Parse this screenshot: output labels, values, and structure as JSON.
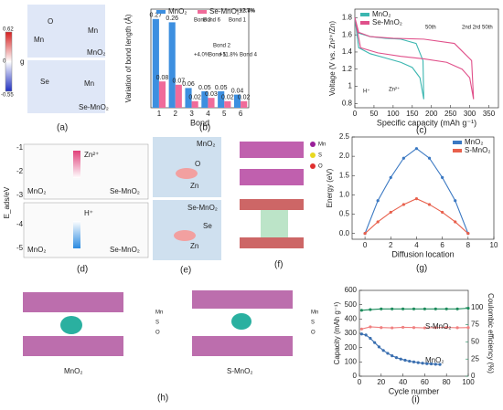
{
  "panel_labels": [
    "(a)",
    "(b)",
    "(c)",
    "(d)",
    "(e)",
    "(f)",
    "(g)",
    "(h)",
    "(i)"
  ],
  "panel_a": {
    "colorbar_title": "g",
    "colorbar_ticks": [
      0.62,
      0,
      -0.55
    ],
    "top_labels": [
      "O",
      "Mn",
      "Mn",
      "MnO₂"
    ],
    "bottom_labels": [
      "Se",
      "Mn",
      "Se-MnO₂"
    ]
  },
  "panel_d": {
    "axis_label": "E_ads/eV",
    "ticks": [
      -1,
      -2,
      -3,
      -4,
      -5
    ],
    "ions": [
      "Zn²⁺",
      "H⁺"
    ],
    "structures": [
      "MnO₂",
      "Se-MnO₂",
      "MnO₂",
      "Se-MnO₂"
    ]
  },
  "panel_e": {
    "top_labels": [
      "MnO₂",
      "O",
      "Zn"
    ],
    "bottom_labels": [
      "Se-MnO₂",
      "Se",
      "Zn"
    ]
  },
  "panel_f": {
    "legend": [
      "Mn",
      "S",
      "O"
    ]
  },
  "panel_h": {
    "structures": [
      "MnO₂",
      "S-MnO₂"
    ],
    "legend_left": [
      "Mn",
      "S",
      "O"
    ],
    "legend_right": [
      "Mn",
      "S",
      "O"
    ]
  },
  "chart_data": [
    {
      "type": "bar",
      "xlabel": "Bond",
      "ylabel": "Variation of bond length (Å)",
      "categories": [
        "1",
        "2",
        "3",
        "4",
        "5",
        "6"
      ],
      "ylim": [
        0,
        0.3
      ],
      "legend": "upper center",
      "series": [
        {
          "name": "MnO₂",
          "color": "#3d8fe0",
          "values": [
            0.27,
            0.26,
            0.06,
            0.05,
            0.05,
            0.04
          ]
        },
        {
          "name": "Se-MnO₂",
          "color": "#f06b9a",
          "values": [
            0.08,
            0.07,
            0.02,
            0.03,
            0.02,
            0.02
          ]
        }
      ],
      "annotations": [
        "Bond 3",
        "Bond 1",
        "+12.7%",
        "Bond 2",
        "+11.8%",
        "+4.0%",
        "Bond 6",
        "Bond 5",
        "Bond 4",
        "+3.4%"
      ]
    },
    {
      "type": "line",
      "xlabel": "Specific capacity (mAh g⁻¹)",
      "ylabel": "Voltage (V vs. Zn²⁺/Zn)",
      "xlim": [
        0,
        375
      ],
      "ylim": [
        0.75,
        1.9
      ],
      "xticks": [
        0,
        50,
        100,
        150,
        200,
        250,
        300,
        350
      ],
      "yticks": [
        0.8,
        1,
        1.2,
        1.4,
        1.6,
        1.8
      ],
      "legend": "upper left",
      "series": [
        {
          "name": "MnO₂",
          "color": "#3bb6b0",
          "x": [
            0,
            10,
            40,
            80,
            120,
            150,
            170,
            180,
            178,
            160,
            120,
            80,
            40,
            10,
            0
          ],
          "values": [
            1.8,
            1.45,
            1.38,
            1.33,
            1.28,
            1.22,
            1.1,
            0.85,
            1.3,
            1.5,
            1.55,
            1.56,
            1.58,
            1.62,
            1.8
          ]
        },
        {
          "name": "Se-MnO₂",
          "color": "#e0508a",
          "x": [
            0,
            15,
            60,
            120,
            180,
            240,
            280,
            300,
            310,
            305,
            260,
            180,
            100,
            40,
            10,
            0
          ],
          "values": [
            1.8,
            1.45,
            1.39,
            1.35,
            1.32,
            1.28,
            1.2,
            1.1,
            0.85,
            1.3,
            1.5,
            1.55,
            1.56,
            1.58,
            1.63,
            1.8
          ]
        }
      ],
      "annotations": [
        "50th",
        "2nd 2rd 50th",
        "H⁺",
        "Zn²⁺"
      ]
    },
    {
      "type": "line",
      "xlabel": "Diffusion location",
      "ylabel": "Energy (eV)",
      "markers": true,
      "xlim": [
        -1,
        10
      ],
      "ylim": [
        -0.15,
        2.5
      ],
      "xticks": [
        0,
        2,
        4,
        6,
        8,
        10
      ],
      "yticks": [
        {
          "value": 0,
          "label": "0.0"
        },
        0.5,
        {
          "value": 1,
          "label": "1.0"
        },
        1.5,
        {
          "value": 2,
          "label": "2.0"
        },
        2.5
      ],
      "legend": "upper right",
      "x": [
        0,
        1,
        2,
        3,
        4,
        5,
        6,
        7,
        8
      ],
      "series": [
        {
          "name": "MnO₂",
          "color": "#3a78c2",
          "values": [
            0,
            0.85,
            1.45,
            1.95,
            2.2,
            1.95,
            1.45,
            0.85,
            0
          ]
        },
        {
          "name": "S-MnO₂",
          "color": "#e8604c",
          "values": [
            0,
            0.3,
            0.55,
            0.75,
            0.9,
            0.75,
            0.55,
            0.3,
            0
          ]
        }
      ]
    },
    {
      "type": "line",
      "xlabel": "Cycle number",
      "ylabel": "Capacity (mAh g⁻¹)",
      "y2label": "Coulombic efficiency (%)",
      "markers": true,
      "xlim": [
        0,
        100
      ],
      "ylim": [
        0,
        600
      ],
      "y2lim": [
        0,
        125
      ],
      "xticks": [
        0,
        20,
        40,
        60,
        80,
        100
      ],
      "yticks": [
        0,
        100,
        200,
        300,
        400,
        500,
        600
      ],
      "y2ticks": [
        0,
        25,
        50,
        75,
        100
      ],
      "series": [
        {
          "name": "MnO₂",
          "color": "#3a6fb0",
          "x": [
            2,
            6,
            10,
            14,
            18,
            22,
            26,
            30,
            34,
            38,
            42,
            46,
            50,
            54,
            58,
            62,
            66,
            70,
            74
          ],
          "values": [
            295,
            288,
            265,
            235,
            205,
            180,
            160,
            143,
            130,
            120,
            112,
            105,
            100,
            95,
            91,
            88,
            86,
            84,
            82
          ]
        },
        {
          "name": "S-MnO₂",
          "color": "#f08080",
          "x": [
            2,
            10,
            20,
            30,
            40,
            50,
            60,
            70,
            80,
            90,
            100
          ],
          "values": [
            330,
            345,
            340,
            338,
            342,
            340,
            338,
            340,
            341,
            339,
            340
          ]
        },
        {
          "color": "#1a8a5a",
          "axis": "y2",
          "x": [
            2,
            10,
            20,
            30,
            40,
            50,
            60,
            70,
            80,
            90,
            100
          ],
          "values": [
            96,
            97,
            98,
            98,
            98,
            98,
            98,
            98,
            98,
            98,
            99
          ]
        }
      ]
    }
  ]
}
